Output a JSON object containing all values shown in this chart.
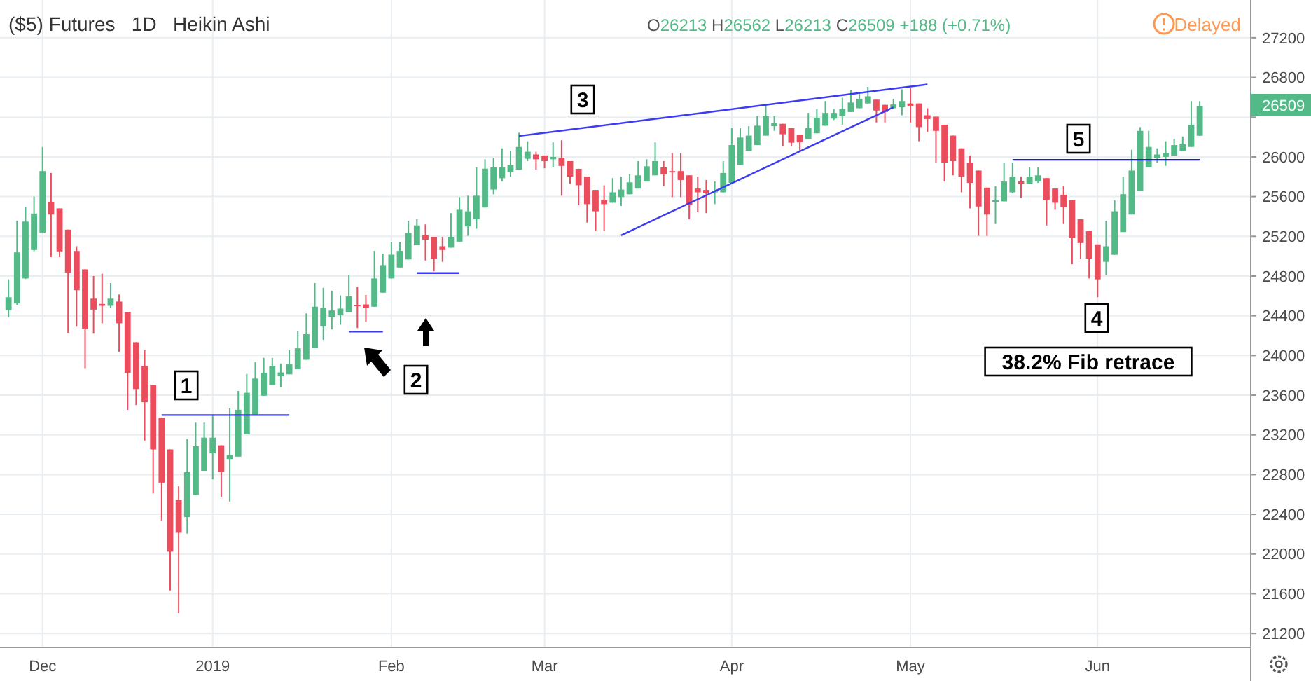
{
  "chart_data": {
    "type": "candlestick",
    "title": "($5) Futures   1D   Heikin Ashi",
    "annotations": [
      "O26213 H26562 L26213 C26509 +188 (+0.71%)",
      "Delayed",
      "1",
      "2",
      "3",
      "4",
      "5",
      "38.2% Fib retrace",
      "26509"
    ],
    "categories": [
      null,
      null,
      null,
      null,
      "Dec",
      null,
      null,
      null,
      null,
      null,
      null,
      null,
      null,
      null,
      null,
      null,
      null,
      null,
      null,
      null,
      null,
      null,
      null,
      null,
      "2019",
      null,
      null,
      null,
      null,
      null,
      null,
      null,
      null,
      null,
      null,
      null,
      null,
      null,
      null,
      null,
      null,
      null,
      null,
      null,
      null,
      "Feb",
      null,
      null,
      null,
      null,
      null,
      null,
      null,
      null,
      null,
      null,
      null,
      null,
      null,
      null,
      null,
      null,
      null,
      "Mar",
      null,
      null,
      null,
      null,
      null,
      null,
      null,
      null,
      null,
      null,
      null,
      null,
      null,
      null,
      null,
      null,
      null,
      null,
      null,
      null,
      null,
      "Apr",
      null,
      null,
      null,
      null,
      null,
      null,
      null,
      null,
      null,
      null,
      null,
      null,
      null,
      null,
      null,
      null,
      null,
      null,
      null,
      null,
      "May",
      null,
      null,
      null,
      null,
      null,
      null,
      null,
      null,
      null,
      null,
      null,
      null,
      null,
      null,
      null,
      null,
      null,
      null,
      null,
      null,
      null,
      "Jun",
      null,
      null,
      null,
      null,
      null,
      null,
      null,
      null,
      null,
      null,
      null,
      null
    ],
    "ohlc": [
      [
        24457,
        24767,
        24386,
        24586
      ],
      [
        24524,
        25357,
        24510,
        25038
      ],
      [
        24776,
        25491,
        24770,
        25348
      ],
      [
        25062,
        25600,
        25050,
        25429
      ],
      [
        25238,
        26100,
        25230,
        25857
      ],
      [
        25548,
        25838,
        24991,
        25419
      ],
      [
        25481,
        25481,
        24991,
        25048
      ],
      [
        25267,
        25267,
        24229,
        24833
      ],
      [
        25052,
        25100,
        24290,
        24657
      ],
      [
        24867,
        24867,
        23872,
        24271
      ],
      [
        24572,
        24800,
        24219,
        24462
      ],
      [
        24519,
        24824,
        24324,
        24500
      ],
      [
        24500,
        24729,
        24476,
        24572
      ],
      [
        24543,
        24614,
        24038,
        24324
      ],
      [
        24438,
        24438,
        23452,
        23824
      ],
      [
        24133,
        24133,
        23500,
        23662
      ],
      [
        23895,
        24052,
        23143,
        23529
      ],
      [
        23705,
        23705,
        22610,
        23053
      ],
      [
        23372,
        23372,
        22338,
        22719
      ],
      [
        23053,
        23053,
        21633,
        22024
      ],
      [
        22548,
        22681,
        21405,
        22214
      ],
      [
        22372,
        23157,
        22205,
        22824
      ],
      [
        22595,
        23324,
        22595,
        23086
      ],
      [
        22838,
        23324,
        22838,
        23172
      ],
      [
        23014,
        23395,
        22752,
        23172
      ],
      [
        23095,
        23095,
        22576,
        22824
      ],
      [
        22957,
        23467,
        22529,
        23000
      ],
      [
        22981,
        23643,
        22981,
        23453
      ],
      [
        23205,
        23814,
        23205,
        23624
      ],
      [
        23405,
        23933,
        23405,
        23767
      ],
      [
        23595,
        23976,
        23595,
        23824
      ],
      [
        23705,
        23976,
        23705,
        23895
      ],
      [
        23791,
        23919,
        23681,
        23829
      ],
      [
        23810,
        24052,
        23810,
        23910
      ],
      [
        23862,
        24243,
        23862,
        24072
      ],
      [
        23957,
        24424,
        23957,
        24214
      ],
      [
        24076,
        24729,
        24076,
        24491
      ],
      [
        24291,
        24681,
        24157,
        24481
      ],
      [
        24386,
        24652,
        24262,
        24453
      ],
      [
        24405,
        24605,
        24310,
        24472
      ],
      [
        24433,
        24814,
        24433,
        24595
      ],
      [
        24510,
        24691,
        24276,
        24500
      ],
      [
        24514,
        24610,
        24338,
        24476
      ],
      [
        24491,
        25053,
        24491,
        24776
      ],
      [
        24633,
        25024,
        24633,
        24910
      ],
      [
        24776,
        25143,
        24776,
        25015
      ],
      [
        24886,
        25143,
        24886,
        25053
      ],
      [
        24967,
        25357,
        24967,
        25234
      ],
      [
        25110,
        25372,
        25110,
        25310
      ],
      [
        25215,
        25320,
        24957,
        25167
      ],
      [
        25195,
        25195,
        24848,
        24976
      ],
      [
        25100,
        25195,
        24943,
        25062
      ],
      [
        25086,
        25433,
        25086,
        25195
      ],
      [
        25147,
        25595,
        25147,
        25467
      ],
      [
        25300,
        25609,
        25205,
        25452
      ],
      [
        25371,
        25895,
        25276,
        25609
      ],
      [
        25490,
        25976,
        25490,
        25881
      ],
      [
        25671,
        25990,
        25623,
        25895
      ],
      [
        25785,
        26086,
        25752,
        25895
      ],
      [
        25847,
        26062,
        25800,
        25919
      ],
      [
        25871,
        26243,
        25871,
        26100
      ],
      [
        25981,
        26157,
        25957,
        26052
      ],
      [
        26024,
        26052,
        25871,
        25976
      ],
      [
        26014,
        26014,
        25885,
        25957
      ],
      [
        25976,
        26147,
        25895,
        26000
      ],
      [
        25990,
        26167,
        25609,
        25909
      ],
      [
        25957,
        25957,
        25728,
        25800
      ],
      [
        25880,
        25880,
        25514,
        25714
      ],
      [
        25800,
        25800,
        25338,
        25524
      ],
      [
        25667,
        25667,
        25252,
        25452
      ],
      [
        25562,
        25714,
        25252,
        25524
      ],
      [
        25538,
        25786,
        25538,
        25643
      ],
      [
        25595,
        25800,
        25505,
        25671
      ],
      [
        25623,
        25824,
        25623,
        25743
      ],
      [
        25681,
        25957,
        25681,
        25814
      ],
      [
        25752,
        25976,
        25752,
        25905
      ],
      [
        25814,
        26147,
        25814,
        25957
      ],
      [
        25895,
        25957,
        25705,
        25824
      ],
      [
        25857,
        26038,
        25595,
        25843
      ],
      [
        25857,
        26038,
        25595,
        25767
      ],
      [
        25814,
        25814,
        25371,
        25514
      ],
      [
        25681,
        25800,
        25443,
        25643
      ],
      [
        25667,
        25767,
        25433,
        25633
      ],
      [
        25643,
        25752,
        25524,
        25657
      ],
      [
        25643,
        25957,
        25643,
        25838
      ],
      [
        25738,
        26290,
        25738,
        26119
      ],
      [
        25919,
        26290,
        25919,
        26195
      ],
      [
        26062,
        26309,
        26062,
        26214
      ],
      [
        26119,
        26409,
        26119,
        26314
      ],
      [
        26214,
        26528,
        26214,
        26409
      ],
      [
        26309,
        26409,
        26262,
        26338
      ],
      [
        26333,
        26333,
        26109,
        26228
      ],
      [
        26290,
        26290,
        26109,
        26143
      ],
      [
        26224,
        26224,
        26062,
        26147
      ],
      [
        26181,
        26443,
        26181,
        26290
      ],
      [
        26238,
        26481,
        26238,
        26395
      ],
      [
        26314,
        26562,
        26314,
        26443
      ],
      [
        26386,
        26481,
        26371,
        26443
      ],
      [
        26409,
        26595,
        26324,
        26481
      ],
      [
        26452,
        26671,
        26452,
        26547
      ],
      [
        26490,
        26633,
        26490,
        26585
      ],
      [
        26538,
        26705,
        26538,
        26610
      ],
      [
        26576,
        26576,
        26347,
        26467
      ],
      [
        26524,
        26524,
        26347,
        26452
      ],
      [
        26490,
        26585,
        26481,
        26528
      ],
      [
        26500,
        26681,
        26419,
        26562
      ],
      [
        26538,
        26690,
        26347,
        26514
      ],
      [
        26538,
        26538,
        26157,
        26300
      ],
      [
        26419,
        26490,
        26252,
        26381
      ],
      [
        26405,
        26405,
        25943,
        26262
      ],
      [
        26324,
        26324,
        25752,
        25943
      ],
      [
        26214,
        26214,
        25814,
        25957
      ],
      [
        26086,
        26086,
        25643,
        25800
      ],
      [
        25943,
        26014,
        25481,
        25738
      ],
      [
        25862,
        25862,
        25205,
        25500
      ],
      [
        25690,
        25690,
        25205,
        25419
      ],
      [
        25552,
        25705,
        25324,
        25562
      ],
      [
        25552,
        25943,
        25552,
        25752
      ],
      [
        25643,
        25943,
        25633,
        25800
      ],
      [
        25752,
        25800,
        25586,
        25729
      ],
      [
        25729,
        25895,
        25729,
        25800
      ],
      [
        25752,
        25895,
        25738,
        25814
      ],
      [
        25786,
        25786,
        25309,
        25562
      ],
      [
        25681,
        25681,
        25467,
        25538
      ],
      [
        25619,
        25705,
        25324,
        25491
      ],
      [
        25562,
        25562,
        24919,
        25181
      ],
      [
        25371,
        25371,
        24976,
        25133
      ],
      [
        25252,
        25252,
        24776,
        24976
      ],
      [
        25119,
        25119,
        24586,
        24767
      ],
      [
        24943,
        25357,
        24814,
        25100
      ],
      [
        25014,
        25562,
        25014,
        25452
      ],
      [
        25243,
        25800,
        25243,
        25624
      ],
      [
        25419,
        26072,
        25419,
        25862
      ],
      [
        25657,
        26300,
        25657,
        26262
      ],
      [
        25895,
        26262,
        25895,
        26100
      ],
      [
        25991,
        26086,
        25943,
        26024
      ],
      [
        26000,
        26157,
        25910,
        26038
      ],
      [
        26014,
        26181,
        26014,
        26119
      ],
      [
        26062,
        26205,
        26062,
        26134
      ],
      [
        26100,
        26562,
        26100,
        26324
      ],
      [
        26213,
        26562,
        26213,
        26509
      ]
    ],
    "colors": [
      "#53b987",
      "#53b987",
      "#53b987",
      "#53b987",
      "#53b987",
      "#eb4d5c",
      "#eb4d5c",
      "#eb4d5c",
      "#eb4d5c",
      "#eb4d5c",
      "#eb4d5c",
      "#eb4d5c",
      "#53b987",
      "#eb4d5c",
      "#eb4d5c",
      "#eb4d5c",
      "#eb4d5c",
      "#eb4d5c",
      "#eb4d5c",
      "#eb4d5c",
      "#eb4d5c",
      "#53b987",
      "#53b987",
      "#53b987",
      "#53b987",
      "#eb4d5c",
      "#53b987",
      "#53b987",
      "#53b987",
      "#53b987",
      "#53b987",
      "#53b987",
      "#53b987",
      "#53b987",
      "#53b987",
      "#53b987",
      "#53b987",
      "#53b987",
      "#53b987",
      "#53b987",
      "#53b987",
      "#eb4d5c",
      "#eb4d5c",
      "#53b987",
      "#53b987",
      "#53b987",
      "#53b987",
      "#53b987",
      "#53b987",
      "#eb4d5c",
      "#eb4d5c",
      "#eb4d5c",
      "#53b987",
      "#53b987",
      "#53b987",
      "#53b987",
      "#53b987",
      "#53b987",
      "#53b987",
      "#53b987",
      "#53b987",
      "#53b987",
      "#eb4d5c",
      "#eb4d5c",
      "#53b987",
      "#eb4d5c",
      "#eb4d5c",
      "#eb4d5c",
      "#eb4d5c",
      "#eb4d5c",
      "#eb4d5c",
      "#53b987",
      "#53b987",
      "#53b987",
      "#53b987",
      "#53b987",
      "#53b987",
      "#eb4d5c",
      "#eb4d5c",
      "#eb4d5c",
      "#eb4d5c",
      "#eb4d5c",
      "#eb4d5c",
      "#53b987",
      "#53b987",
      "#53b987",
      "#53b987",
      "#53b987",
      "#53b987",
      "#53b987",
      "#53b987",
      "#eb4d5c",
      "#eb4d5c",
      "#eb4d5c",
      "#53b987",
      "#53b987",
      "#53b987",
      "#53b987",
      "#53b987",
      "#53b987",
      "#53b987",
      "#53b987",
      "#eb4d5c",
      "#eb4d5c",
      "#53b987",
      "#53b987",
      "#eb4d5c",
      "#eb4d5c",
      "#eb4d5c",
      "#eb4d5c",
      "#eb4d5c",
      "#eb4d5c",
      "#eb4d5c",
      "#eb4d5c",
      "#eb4d5c",
      "#eb4d5c",
      "#53b987",
      "#53b987",
      "#53b987",
      "#eb4d5c",
      "#53b987",
      "#53b987",
      "#eb4d5c",
      "#eb4d5c",
      "#eb4d5c",
      "#eb4d5c",
      "#eb4d5c",
      "#eb4d5c",
      "#eb4d5c",
      "#53b987",
      "#53b987",
      "#53b987",
      "#53b987",
      "#53b987",
      "#53b987",
      "#53b987",
      "#53b987",
      "#53b987",
      "#53b987",
      "#53b987",
      "#53b987"
    ],
    "series": [
      {
        "type": "line",
        "color": "#3b3bf5",
        "values": [
          null,
          null,
          null,
          null,
          null,
          null,
          null,
          null,
          null,
          null,
          null,
          null,
          null,
          null,
          null,
          null,
          null,
          null,
          23400,
          null,
          null,
          null,
          null,
          null,
          null,
          null,
          null,
          null,
          null,
          null,
          null,
          null,
          null,
          23400,
          null,
          null,
          null,
          null,
          null,
          null,
          null,
          null,
          null,
          null,
          null,
          null,
          null,
          null,
          null,
          null,
          null,
          null,
          null,
          null,
          null,
          null,
          null,
          null,
          null,
          null,
          null,
          null,
          null,
          null,
          null,
          null,
          null,
          null,
          null,
          null,
          null,
          null,
          null,
          null,
          null,
          null,
          null,
          null,
          null,
          null,
          null,
          null,
          null,
          null,
          null,
          null,
          null,
          null,
          null,
          null,
          null,
          null,
          null,
          null,
          null,
          null,
          null,
          null,
          null,
          null,
          null,
          null,
          null,
          null,
          null,
          null,
          null,
          null,
          null,
          null,
          null,
          null,
          null,
          null,
          null,
          null,
          null,
          null,
          null,
          null,
          null,
          null,
          null,
          null,
          null,
          null,
          null,
          null,
          null,
          null,
          null,
          null,
          null,
          null,
          null,
          null,
          null,
          null,
          null,
          null,
          null
        ]
      },
      {
        "type": "line",
        "color": "#3b3bf5",
        "values": [
          null,
          null,
          null,
          null,
          null,
          null,
          null,
          null,
          null,
          null,
          null,
          null,
          null,
          null,
          null,
          null,
          null,
          null,
          null,
          null,
          null,
          null,
          null,
          null,
          null,
          null,
          null,
          null,
          null,
          null,
          null,
          null,
          null,
          null,
          null,
          null,
          null,
          null,
          null,
          null,
          24240,
          null,
          null,
          null,
          24240,
          null,
          null,
          null,
          null,
          null,
          null,
          null,
          null,
          null,
          null,
          null,
          null,
          null,
          null,
          null,
          null,
          null,
          null,
          null,
          null,
          null,
          null,
          null,
          null,
          null,
          null,
          null,
          null,
          null,
          null,
          null,
          null,
          null,
          null,
          null,
          null,
          null,
          null,
          null,
          null,
          null,
          null,
          null,
          null,
          null,
          null,
          null,
          null,
          null,
          null,
          null,
          null,
          null,
          null,
          null,
          null,
          null,
          null,
          null,
          null,
          null,
          null,
          null,
          null,
          null,
          null,
          null,
          null,
          null,
          null,
          null,
          null,
          null,
          null,
          null,
          null,
          null,
          null,
          null,
          null,
          null,
          null,
          null,
          null,
          null,
          null,
          null,
          null,
          null,
          null,
          null,
          null,
          null,
          null,
          null,
          null
        ]
      },
      {
        "type": "line",
        "color": "#3b3bf5",
        "values": [
          null,
          null,
          null,
          null,
          null,
          null,
          null,
          null,
          null,
          null,
          null,
          null,
          null,
          null,
          null,
          null,
          null,
          null,
          null,
          null,
          null,
          null,
          null,
          null,
          null,
          null,
          null,
          null,
          null,
          null,
          null,
          null,
          null,
          null,
          null,
          null,
          null,
          null,
          null,
          null,
          null,
          null,
          null,
          null,
          null,
          null,
          null,
          null,
          24830,
          null,
          null,
          null,
          null,
          24830,
          null,
          null,
          null,
          null,
          null,
          null,
          null,
          null,
          null,
          null,
          null,
          null,
          null,
          null,
          null,
          null,
          null,
          null,
          null,
          null,
          null,
          null,
          null,
          null,
          null,
          null,
          null,
          null,
          null,
          null,
          null,
          null,
          null,
          null,
          null,
          null,
          null,
          null,
          null,
          null,
          null,
          null,
          null,
          null,
          null,
          null,
          null,
          null,
          null,
          null,
          null,
          null,
          null,
          null,
          null,
          null,
          null,
          null,
          null,
          null,
          null,
          null,
          null,
          null,
          null,
          null,
          null,
          null,
          null,
          null,
          null,
          null,
          null,
          null,
          null,
          null,
          null,
          null,
          null,
          null,
          null,
          null,
          null,
          null,
          null,
          null,
          null
        ]
      },
      {
        "type": "line",
        "color": "#3b3bf5",
        "values": [
          null,
          null,
          null,
          null,
          null,
          null,
          null,
          null,
          null,
          null,
          null,
          null,
          null,
          null,
          null,
          null,
          null,
          null,
          null,
          null,
          null,
          null,
          null,
          null,
          null,
          null,
          null,
          null,
          null,
          null,
          null,
          null,
          null,
          null,
          null,
          null,
          null,
          null,
          null,
          null,
          null,
          null,
          null,
          null,
          null,
          null,
          null,
          null,
          null,
          null,
          null,
          null,
          null,
          null,
          null,
          null,
          null,
          null,
          null,
          null,
          26210,
          null,
          null,
          null,
          null,
          null,
          null,
          null,
          null,
          null,
          null,
          null,
          null,
          null,
          null,
          null,
          null,
          null,
          null,
          null,
          null,
          null,
          null,
          null,
          null,
          null,
          null,
          null,
          null,
          null,
          null,
          null,
          null,
          null,
          null,
          null,
          null,
          null,
          null,
          null,
          null,
          null,
          null,
          null,
          null,
          null,
          null,
          null,
          26730,
          null,
          null,
          null,
          null,
          null,
          null,
          null,
          null,
          null,
          null,
          null,
          null,
          null,
          null,
          null,
          null,
          null,
          null,
          null,
          null,
          null,
          null,
          null,
          null,
          null,
          null,
          null,
          null,
          null,
          null,
          null,
          null
        ]
      },
      {
        "type": "line",
        "color": "#3b3bf5",
        "values": [
          null,
          null,
          null,
          null,
          null,
          null,
          null,
          null,
          null,
          null,
          null,
          null,
          null,
          null,
          null,
          null,
          null,
          null,
          null,
          null,
          null,
          null,
          null,
          null,
          null,
          null,
          null,
          null,
          null,
          null,
          null,
          null,
          null,
          null,
          null,
          null,
          null,
          null,
          null,
          null,
          null,
          null,
          null,
          null,
          null,
          null,
          null,
          null,
          null,
          null,
          null,
          null,
          null,
          null,
          null,
          null,
          null,
          null,
          null,
          null,
          null,
          null,
          null,
          null,
          null,
          null,
          null,
          null,
          null,
          null,
          null,
          null,
          25210,
          null,
          null,
          null,
          null,
          null,
          null,
          null,
          null,
          null,
          null,
          null,
          null,
          null,
          null,
          null,
          null,
          null,
          null,
          null,
          null,
          null,
          null,
          null,
          null,
          null,
          null,
          null,
          null,
          null,
          null,
          null,
          26500,
          null,
          null,
          null,
          null,
          null,
          null,
          null,
          null,
          null,
          null,
          null,
          null,
          null,
          null,
          null,
          null,
          null,
          null,
          null,
          null,
          null,
          null,
          null,
          null,
          null,
          null,
          null,
          null,
          null,
          null,
          null,
          null,
          null,
          null,
          null,
          null
        ]
      },
      {
        "type": "line",
        "color": "#1c1ccc",
        "values": [
          null,
          null,
          null,
          null,
          null,
          null,
          null,
          null,
          null,
          null,
          null,
          null,
          null,
          null,
          null,
          null,
          null,
          null,
          null,
          null,
          null,
          null,
          null,
          null,
          null,
          null,
          null,
          null,
          null,
          null,
          null,
          null,
          null,
          null,
          null,
          null,
          null,
          null,
          null,
          null,
          null,
          null,
          null,
          null,
          null,
          null,
          null,
          null,
          null,
          null,
          null,
          null,
          null,
          null,
          null,
          null,
          null,
          null,
          null,
          null,
          null,
          null,
          null,
          null,
          null,
          null,
          null,
          null,
          null,
          null,
          null,
          null,
          null,
          null,
          null,
          null,
          null,
          null,
          null,
          null,
          null,
          null,
          null,
          null,
          null,
          null,
          null,
          null,
          null,
          null,
          null,
          null,
          null,
          null,
          null,
          null,
          null,
          null,
          null,
          null,
          null,
          null,
          null,
          null,
          null,
          null,
          null,
          null,
          null,
          null,
          null,
          null,
          null,
          null,
          null,
          null,
          null,
          null,
          25970,
          null,
          null,
          null,
          null,
          null,
          null,
          null,
          null,
          null,
          null,
          null,
          null,
          null,
          null,
          null,
          null,
          null,
          null,
          null,
          null,
          null,
          25970
        ]
      }
    ],
    "ylim": [
      21060,
      27580
    ],
    "yticks": [
      21200,
      21600,
      22000,
      22400,
      22800,
      23200,
      23600,
      24000,
      24400,
      24800,
      25200,
      25600,
      26000,
      {
        "value": 26400,
        "label": null
      },
      26800,
      27200
    ],
    "grid": true
  }
}
